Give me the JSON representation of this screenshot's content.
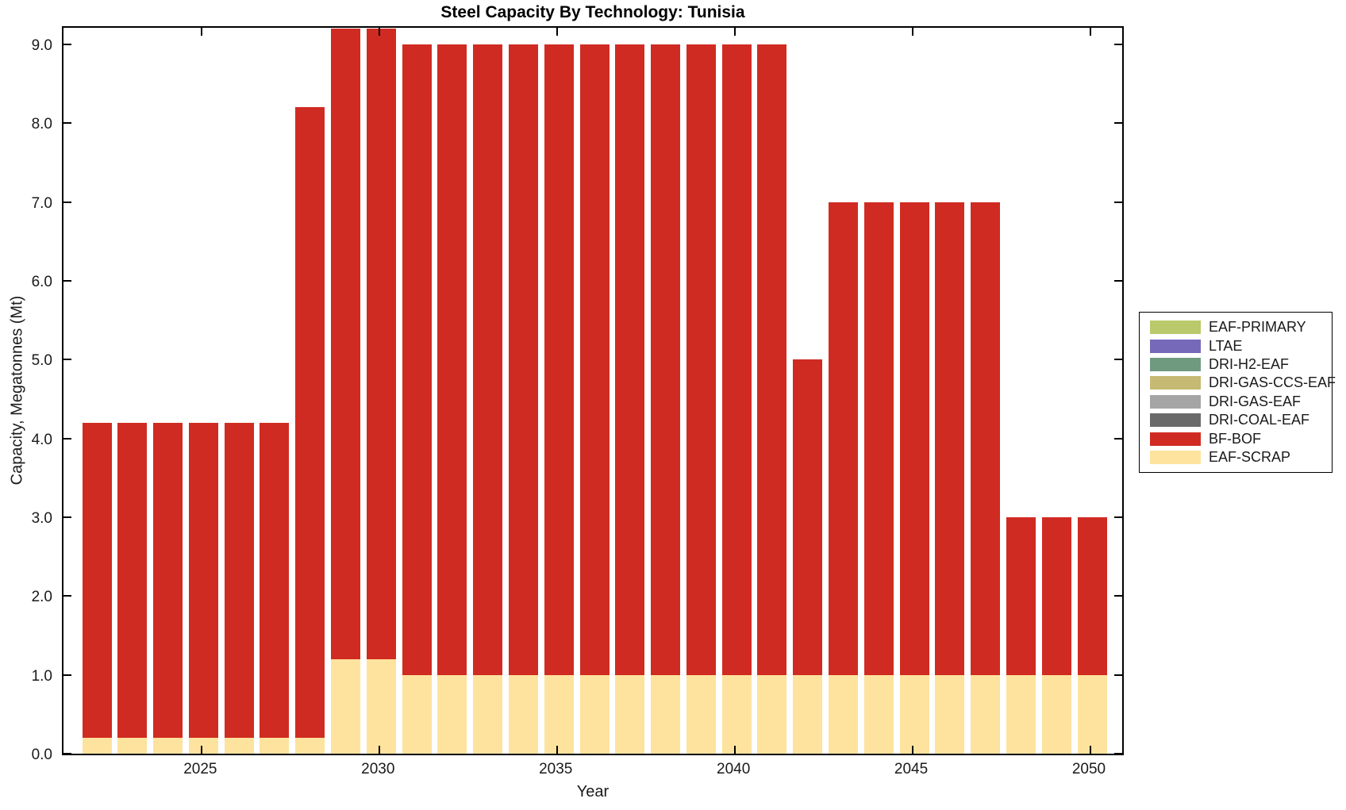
{
  "chart_data": {
    "type": "bar",
    "stacked": true,
    "title": "Steel Capacity By Technology: Tunisia",
    "xlabel": "Year",
    "ylabel": "Capacity, Megatonnes (Mt)",
    "grid": false,
    "legend_position": "right-outside",
    "ylim": [
      0,
      9.25
    ],
    "x": [
      2022,
      2023,
      2024,
      2025,
      2026,
      2027,
      2028,
      2029,
      2030,
      2031,
      2032,
      2033,
      2034,
      2035,
      2036,
      2037,
      2038,
      2039,
      2040,
      2041,
      2042,
      2043,
      2044,
      2045,
      2046,
      2047,
      2048,
      2049,
      2050
    ],
    "xticks": [
      {
        "value": 2025,
        "label": "2025"
      },
      {
        "value": 2030,
        "label": "2030"
      },
      {
        "value": 2035,
        "label": "2035"
      },
      {
        "value": 2040,
        "label": "2040"
      },
      {
        "value": 2045,
        "label": "2045"
      },
      {
        "value": 2050,
        "label": "2050"
      }
    ],
    "yticks": [
      {
        "value": 0,
        "label": "0.0"
      },
      {
        "value": 1,
        "label": "1.0"
      },
      {
        "value": 2,
        "label": "2.0"
      },
      {
        "value": 3,
        "label": "3.0"
      },
      {
        "value": 4,
        "label": "4.0"
      },
      {
        "value": 5,
        "label": "5.0"
      },
      {
        "value": 6,
        "label": "6.0"
      },
      {
        "value": 7,
        "label": "7.0"
      },
      {
        "value": 8,
        "label": "8.0"
      },
      {
        "value": 9,
        "label": "9.0"
      }
    ],
    "series": [
      {
        "name": "EAF-SCRAP",
        "color": "#fde39e",
        "values": [
          0.2,
          0.2,
          0.2,
          0.2,
          0.2,
          0.2,
          0.2,
          1.2,
          1.2,
          1.0,
          1.0,
          1.0,
          1.0,
          1.0,
          1.0,
          1.0,
          1.0,
          1.0,
          1.0,
          1.0,
          1.0,
          1.0,
          1.0,
          1.0,
          1.0,
          1.0,
          1.0,
          1.0,
          1.0
        ]
      },
      {
        "name": "BF-BOF",
        "color": "#d02b22",
        "values": [
          4.0,
          4.0,
          4.0,
          4.0,
          4.0,
          4.0,
          8.0,
          8.0,
          8.0,
          8.0,
          8.0,
          8.0,
          8.0,
          8.0,
          8.0,
          8.0,
          8.0,
          8.0,
          8.0,
          8.0,
          4.0,
          6.0,
          6.0,
          6.0,
          6.0,
          6.0,
          2.0,
          2.0,
          2.0
        ]
      }
    ],
    "bar_totals": [
      4.2,
      4.2,
      4.2,
      4.2,
      4.2,
      4.2,
      8.2,
      9.2,
      9.2,
      9.0,
      9.0,
      9.0,
      9.0,
      9.0,
      9.0,
      9.0,
      9.0,
      9.0,
      9.0,
      9.0,
      5.0,
      7.0,
      7.0,
      7.0,
      7.0,
      7.0,
      3.0,
      3.0,
      3.0
    ],
    "legend": [
      {
        "name": "EAF-PRIMARY",
        "color": "#b9c96b"
      },
      {
        "name": "LTAE",
        "color": "#7669b9"
      },
      {
        "name": "DRI-H2-EAF",
        "color": "#6f9a80"
      },
      {
        "name": "DRI-GAS-CCS-EAF",
        "color": "#c5b974"
      },
      {
        "name": "DRI-GAS-EAF",
        "color": "#a5a5a5"
      },
      {
        "name": "DRI-COAL-EAF",
        "color": "#6a6a6a"
      },
      {
        "name": "BF-BOF",
        "color": "#d02b22"
      },
      {
        "name": "EAF-SCRAP",
        "color": "#fde39e"
      }
    ]
  }
}
